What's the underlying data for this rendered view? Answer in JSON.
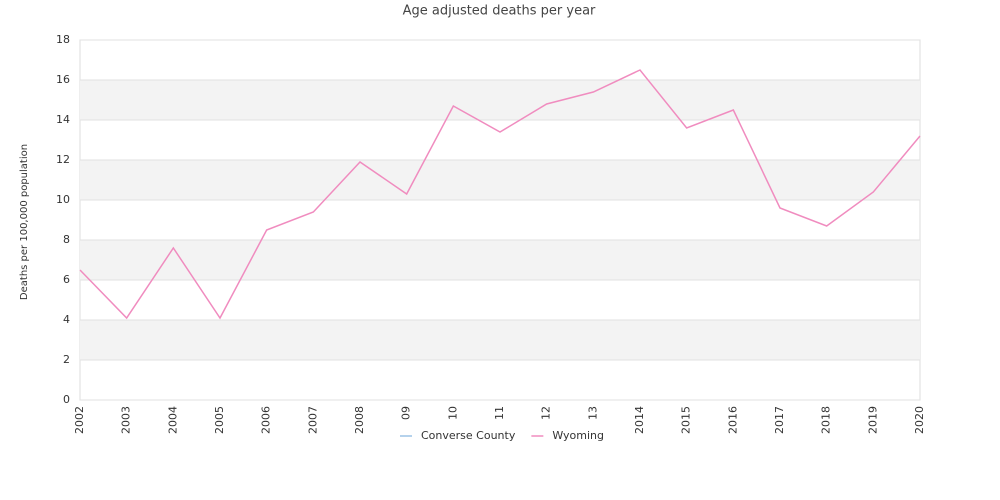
{
  "chart_data": {
    "type": "line",
    "title": "Age adjusted deaths per year",
    "y_label": "Deaths per 100,000 population",
    "categories": [
      "2002",
      "2003",
      "2004",
      "2005",
      "2006",
      "2007",
      "2008",
      "09",
      "10",
      "11",
      "12",
      "13",
      "2014",
      "2015",
      "2016",
      "2017",
      "2018",
      "2019",
      "2020"
    ],
    "series": [
      {
        "name": "Converse County",
        "color": "#9cc3e6",
        "values": [
          null,
          null,
          null,
          null,
          null,
          null,
          null,
          null,
          null,
          null,
          null,
          null,
          null,
          null,
          null,
          null,
          null,
          null,
          null
        ]
      },
      {
        "name": "Wyoming",
        "color": "#f08cbf",
        "values": [
          6.5,
          4.1,
          7.6,
          4.1,
          8.5,
          9.4,
          11.9,
          10.3,
          14.7,
          13.4,
          14.8,
          15.4,
          16.5,
          13.6,
          14.5,
          9.6,
          8.7,
          10.4,
          13.2
        ]
      }
    ],
    "ylim": [
      0,
      18
    ],
    "yticks": [
      0,
      2,
      4,
      6,
      8,
      10,
      12,
      14,
      16,
      18
    ],
    "grid": true,
    "legend": "bottom"
  }
}
